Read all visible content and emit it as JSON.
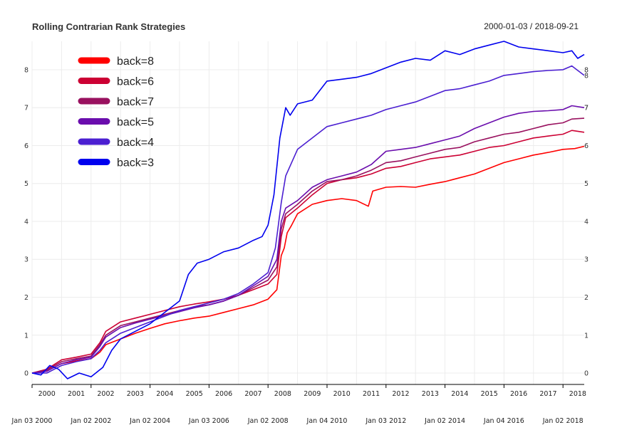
{
  "chart_data": {
    "type": "line",
    "title": "Rolling Contrarian Rank Strategies",
    "date_range": "2000-01-03 / 2018-09-21",
    "ylim": [
      -0.3,
      8.75
    ],
    "y_ticks": [
      0,
      1,
      2,
      3,
      4,
      5,
      6,
      7,
      8
    ],
    "x_year_labels": [
      "2000",
      "2001",
      "2002",
      "2003",
      "2004",
      "2005",
      "2006",
      "2007",
      "2008",
      "2009",
      "2010",
      "2011",
      "2012",
      "2013",
      "2014",
      "2015",
      "2016",
      "2017",
      "2018"
    ],
    "x_date_labels": [
      {
        "label": "Jan 03 2000",
        "x": 2000.0
      },
      {
        "label": "Jan 02 2002",
        "x": 2002.0
      },
      {
        "label": "Jan 02 2004",
        "x": 2004.0
      },
      {
        "label": "Jan 03 2006",
        "x": 2006.0
      },
      {
        "label": "Jan 02 2008",
        "x": 2008.0
      },
      {
        "label": "Jan 04 2010",
        "x": 2010.0
      },
      {
        "label": "Jan 03 2012",
        "x": 2012.0
      },
      {
        "label": "Jan 02 2014",
        "x": 2014.0
      },
      {
        "label": "Jan 04 2016",
        "x": 2016.0
      },
      {
        "label": "Jan 02 2018",
        "x": 2018.0
      }
    ],
    "legend_position": "top-left",
    "grid": true,
    "series": [
      {
        "name": "back=8",
        "color": "#ff0000",
        "end_label": "",
        "x": [
          2000.0,
          2000.5,
          2001.0,
          2001.5,
          2002.0,
          2002.3,
          2002.5,
          2003.0,
          2003.5,
          2004.0,
          2004.5,
          2005.0,
          2005.5,
          2006.0,
          2006.5,
          2007.0,
          2007.5,
          2008.0,
          2008.3,
          2008.45,
          2008.55,
          2008.65,
          2008.8,
          2009.0,
          2009.5,
          2010.0,
          2010.5,
          2011.0,
          2011.4,
          2011.55,
          2012.0,
          2012.5,
          2013.0,
          2013.5,
          2014.0,
          2014.5,
          2015.0,
          2015.5,
          2016.0,
          2016.5,
          2017.0,
          2017.5,
          2018.0,
          2018.4,
          2018.72
        ],
        "y": [
          0,
          0.05,
          0.25,
          0.32,
          0.38,
          0.55,
          0.75,
          0.9,
          1.05,
          1.18,
          1.3,
          1.38,
          1.45,
          1.5,
          1.6,
          1.7,
          1.8,
          1.95,
          2.2,
          3.1,
          3.3,
          3.7,
          3.9,
          4.2,
          4.45,
          4.55,
          4.6,
          4.55,
          4.4,
          4.8,
          4.9,
          4.92,
          4.9,
          4.98,
          5.05,
          5.15,
          5.25,
          5.4,
          5.55,
          5.65,
          5.75,
          5.82,
          5.9,
          5.92,
          5.98
        ]
      },
      {
        "name": "back=6",
        "color": "#cc0033",
        "end_label": "",
        "x": [
          2000.0,
          2000.5,
          2001.0,
          2001.5,
          2002.0,
          2002.3,
          2002.5,
          2003.0,
          2003.5,
          2004.0,
          2004.5,
          2005.0,
          2005.5,
          2006.0,
          2006.5,
          2007.0,
          2007.5,
          2008.0,
          2008.3,
          2008.45,
          2008.6,
          2009.0,
          2009.5,
          2010.0,
          2010.5,
          2011.0,
          2011.5,
          2012.0,
          2012.5,
          2013.0,
          2013.5,
          2014.0,
          2014.5,
          2015.0,
          2015.5,
          2016.0,
          2016.5,
          2017.0,
          2017.5,
          2018.0,
          2018.3,
          2018.72
        ],
        "y": [
          0,
          0.1,
          0.35,
          0.42,
          0.5,
          0.8,
          1.1,
          1.35,
          1.45,
          1.55,
          1.65,
          1.75,
          1.82,
          1.88,
          1.95,
          2.05,
          2.2,
          2.35,
          2.6,
          3.6,
          4.1,
          4.35,
          4.7,
          5.0,
          5.1,
          5.15,
          5.25,
          5.4,
          5.45,
          5.55,
          5.65,
          5.7,
          5.75,
          5.85,
          5.95,
          6.0,
          6.1,
          6.2,
          6.25,
          6.3,
          6.4,
          6.35
        ]
      },
      {
        "name": "back=7",
        "color": "#99115f",
        "end_label": "",
        "x": [
          2000.0,
          2000.5,
          2001.0,
          2001.5,
          2002.0,
          2002.3,
          2002.5,
          2003.0,
          2003.5,
          2004.0,
          2004.5,
          2005.0,
          2005.5,
          2006.0,
          2006.5,
          2007.0,
          2007.5,
          2008.0,
          2008.3,
          2008.45,
          2008.6,
          2009.0,
          2009.5,
          2010.0,
          2010.5,
          2011.0,
          2011.5,
          2012.0,
          2012.5,
          2013.0,
          2013.5,
          2014.0,
          2014.5,
          2015.0,
          2015.5,
          2016.0,
          2016.5,
          2017.0,
          2017.5,
          2018.0,
          2018.3,
          2018.72
        ],
        "y": [
          0,
          0.08,
          0.3,
          0.38,
          0.45,
          0.75,
          1.0,
          1.25,
          1.35,
          1.45,
          1.55,
          1.65,
          1.75,
          1.8,
          1.9,
          2.05,
          2.25,
          2.45,
          2.8,
          3.8,
          4.2,
          4.45,
          4.8,
          5.05,
          5.1,
          5.2,
          5.35,
          5.55,
          5.6,
          5.7,
          5.8,
          5.9,
          5.95,
          6.1,
          6.2,
          6.3,
          6.35,
          6.45,
          6.55,
          6.6,
          6.7,
          6.72
        ]
      },
      {
        "name": "back=5",
        "color": "#6a0dad",
        "end_label": "7",
        "x": [
          2000.0,
          2000.5,
          2001.0,
          2001.5,
          2002.0,
          2002.3,
          2002.5,
          2003.0,
          2003.5,
          2004.0,
          2004.5,
          2005.0,
          2005.5,
          2006.0,
          2006.5,
          2007.0,
          2007.5,
          2008.0,
          2008.3,
          2008.45,
          2008.6,
          2009.0,
          2009.5,
          2010.0,
          2010.5,
          2011.0,
          2011.5,
          2012.0,
          2012.5,
          2013.0,
          2013.5,
          2014.0,
          2014.5,
          2015.0,
          2015.5,
          2016.0,
          2016.5,
          2017.0,
          2017.5,
          2018.0,
          2018.3,
          2018.72
        ],
        "y": [
          0,
          0.05,
          0.25,
          0.35,
          0.42,
          0.7,
          0.95,
          1.2,
          1.32,
          1.42,
          1.52,
          1.62,
          1.72,
          1.8,
          1.9,
          2.05,
          2.3,
          2.55,
          3.0,
          4.0,
          4.35,
          4.55,
          4.9,
          5.1,
          5.2,
          5.3,
          5.5,
          5.85,
          5.9,
          5.95,
          6.05,
          6.15,
          6.25,
          6.45,
          6.6,
          6.75,
          6.85,
          6.9,
          6.92,
          6.95,
          7.05,
          7.0
        ]
      },
      {
        "name": "back=4",
        "color": "#4b1fd1",
        "end_label": "8",
        "x": [
          2000.0,
          2000.5,
          2001.0,
          2001.5,
          2002.0,
          2002.3,
          2002.5,
          2003.0,
          2003.5,
          2004.0,
          2004.5,
          2005.0,
          2005.5,
          2006.0,
          2006.5,
          2007.0,
          2007.5,
          2008.0,
          2008.25,
          2008.45,
          2008.6,
          2009.0,
          2009.5,
          2010.0,
          2010.5,
          2011.0,
          2011.5,
          2012.0,
          2012.5,
          2013.0,
          2013.5,
          2014.0,
          2014.5,
          2015.0,
          2015.5,
          2016.0,
          2016.5,
          2017.0,
          2017.5,
          2018.0,
          2018.3,
          2018.72
        ],
        "y": [
          0,
          0.0,
          0.2,
          0.3,
          0.38,
          0.6,
          0.8,
          1.05,
          1.2,
          1.35,
          1.5,
          1.65,
          1.75,
          1.85,
          1.95,
          2.1,
          2.35,
          2.65,
          3.3,
          4.5,
          5.2,
          5.9,
          6.2,
          6.5,
          6.6,
          6.7,
          6.8,
          6.95,
          7.05,
          7.15,
          7.3,
          7.45,
          7.5,
          7.6,
          7.7,
          7.85,
          7.9,
          7.95,
          7.98,
          8.0,
          8.1,
          7.85
        ]
      },
      {
        "name": "back=3",
        "color": "#0000ee",
        "end_label": "",
        "x": [
          2000.0,
          2000.3,
          2000.6,
          2000.9,
          2001.2,
          2001.6,
          2002.0,
          2002.4,
          2002.7,
          2003.0,
          2003.5,
          2004.0,
          2004.5,
          2005.0,
          2005.3,
          2005.6,
          2006.0,
          2006.5,
          2007.0,
          2007.5,
          2007.8,
          2008.0,
          2008.2,
          2008.4,
          2008.6,
          2008.75,
          2009.0,
          2009.5,
          2009.8,
          2010.0,
          2010.5,
          2011.0,
          2011.5,
          2012.0,
          2012.5,
          2013.0,
          2013.5,
          2014.0,
          2014.5,
          2015.0,
          2015.5,
          2016.0,
          2016.5,
          2017.0,
          2017.5,
          2018.0,
          2018.3,
          2018.5,
          2018.72
        ],
        "y": [
          0,
          -0.05,
          0.2,
          0.1,
          -0.15,
          0.0,
          -0.1,
          0.15,
          0.6,
          0.9,
          1.1,
          1.3,
          1.6,
          1.9,
          2.6,
          2.9,
          3.0,
          3.2,
          3.3,
          3.5,
          3.6,
          3.9,
          4.7,
          6.2,
          7.0,
          6.8,
          7.1,
          7.2,
          7.5,
          7.7,
          7.75,
          7.8,
          7.9,
          8.05,
          8.2,
          8.3,
          8.25,
          8.5,
          8.4,
          8.55,
          8.65,
          8.75,
          8.6,
          8.55,
          8.5,
          8.45,
          8.5,
          8.3,
          8.4
        ]
      }
    ]
  }
}
